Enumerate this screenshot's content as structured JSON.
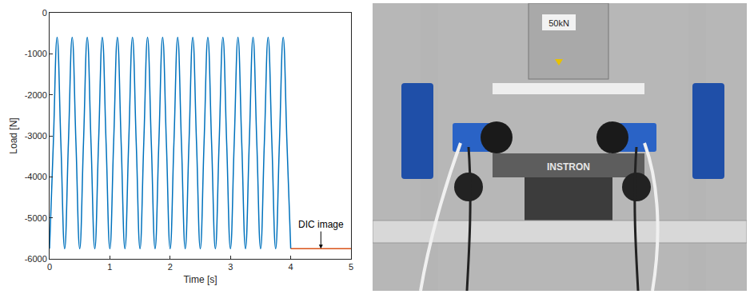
{
  "chart_data": {
    "type": "line",
    "xlabel": "Time [s]",
    "ylabel": "Load [N]",
    "xlim": [
      0,
      5
    ],
    "xticks": [
      0,
      1,
      2,
      3,
      4,
      5
    ],
    "ylim": [
      -6000,
      0
    ],
    "yticks": [
      -6000,
      -5000,
      -4000,
      -3000,
      -2000,
      -1000,
      0
    ],
    "grid": false,
    "series": [
      {
        "color": "#0072bd",
        "line_style": "spline",
        "x": [
          0,
          0.0625,
          0.125,
          0.1875,
          0.25,
          0.3125,
          0.375,
          0.4375,
          0.5,
          0.5625,
          0.625,
          0.6875,
          0.75,
          0.8125,
          0.875,
          0.9375,
          1,
          1.0625,
          1.125,
          1.1875,
          1.25,
          1.3125,
          1.375,
          1.4375,
          1.5,
          1.5625,
          1.625,
          1.6875,
          1.75,
          1.8125,
          1.875,
          1.9375,
          2,
          2.0625,
          2.125,
          2.1875,
          2.25,
          2.3125,
          2.375,
          2.4375,
          2.5,
          2.5625,
          2.625,
          2.6875,
          2.75,
          2.8125,
          2.875,
          2.9375,
          3,
          3.0625,
          3.125,
          3.1875,
          3.25,
          3.3125,
          3.375,
          3.4375,
          3.5,
          3.5625,
          3.625,
          3.6875,
          3.75,
          3.8125,
          3.875,
          3.9375,
          4
        ],
        "values": [
          -5750,
          -3175,
          -600,
          -3175,
          -5750,
          -3175,
          -600,
          -3175,
          -5750,
          -3175,
          -600,
          -3175,
          -5750,
          -3175,
          -600,
          -3175,
          -5750,
          -3175,
          -600,
          -3175,
          -5750,
          -3175,
          -600,
          -3175,
          -5750,
          -3175,
          -600,
          -3175,
          -5750,
          -3175,
          -600,
          -3175,
          -5750,
          -3175,
          -600,
          -3175,
          -5750,
          -3175,
          -600,
          -3175,
          -5750,
          -3175,
          -600,
          -3175,
          -5750,
          -3175,
          -600,
          -3175,
          -5750,
          -3175,
          -600,
          -3175,
          -5750,
          -3175,
          -600,
          -3175,
          -5750,
          -3175,
          -600,
          -3175,
          -5750,
          -3175,
          -600,
          -3175,
          -5750
        ]
      },
      {
        "color": "#d95319",
        "line_style": "solid",
        "x": [
          4,
          5
        ],
        "values": [
          -5750,
          -5750
        ]
      }
    ],
    "annotations": [
      {
        "text": "DIC image",
        "x": 4.5,
        "y": -5750
      }
    ]
  },
  "photo": {
    "labels": [
      "INSTRON",
      "50kN"
    ]
  }
}
